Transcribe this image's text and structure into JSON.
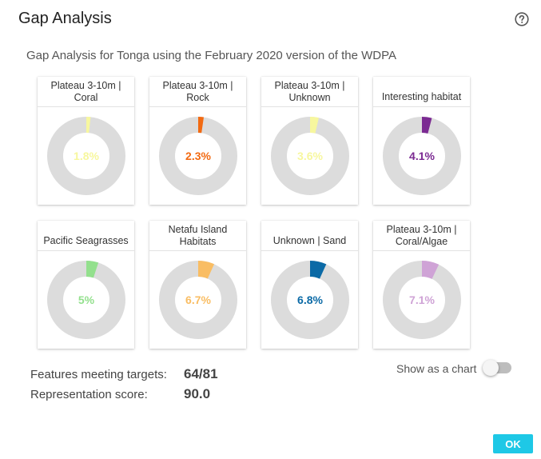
{
  "dialog": {
    "title": "Gap Analysis",
    "help_icon": "help-circle-icon",
    "subtitle": "Gap Analysis for Tonga using the February 2020 version of the WDPA"
  },
  "features": [
    {
      "name": "Plateau 3-10m | Coral",
      "percent": 1.8,
      "label": "1.8%",
      "color": "#f7f79e"
    },
    {
      "name": "Plateau 3-10m | Rock",
      "percent": 2.3,
      "label": "2.3%",
      "color": "#f26a12"
    },
    {
      "name": "Plateau 3-10m | Unknown",
      "percent": 3.6,
      "label": "3.6%",
      "color": "#f7f79e"
    },
    {
      "name": "Interesting habitat",
      "percent": 4.1,
      "label": "4.1%",
      "color": "#7b2a92"
    },
    {
      "name": "Pacific Seagrasses",
      "percent": 5,
      "label": "5%",
      "color": "#93e08d"
    },
    {
      "name": "Netafu Island Habitats",
      "percent": 6.7,
      "label": "6.7%",
      "color": "#f9bd63"
    },
    {
      "name": "Unknown | Sand",
      "percent": 6.8,
      "label": "6.8%",
      "color": "#0b6aa6"
    },
    {
      "name": "Plateau 3-10m | Coral/Algae",
      "percent": 7.1,
      "label": "7.1%",
      "color": "#cfa3d6"
    }
  ],
  "stats": {
    "features_label": "Features meeting targets:",
    "features_value": "64/81",
    "score_label": "Representation score:",
    "score_value": "90.0"
  },
  "chart_toggle": {
    "label": "Show as a chart",
    "on": false
  },
  "ok_button": {
    "label": "OK",
    "color": "#1ec8e6"
  },
  "donut_track_color": "#dcdcdc"
}
